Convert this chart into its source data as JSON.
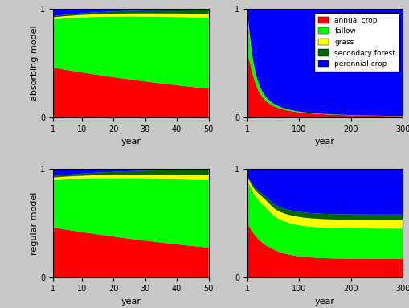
{
  "colors": {
    "annual_crop": "#FF0000",
    "fallow": "#00FF00",
    "grass": "#FFFF00",
    "secondary_forest": "#006400",
    "perennial_crop": "#0000FF"
  },
  "legend_labels": [
    "annual crop",
    "fallow",
    "grass",
    "secondary forest",
    "perennial crop"
  ],
  "ylabel_top": "absorbing model",
  "ylabel_bottom": "regular model",
  "xlabel": "year",
  "background_color": "#c8c8c8"
}
